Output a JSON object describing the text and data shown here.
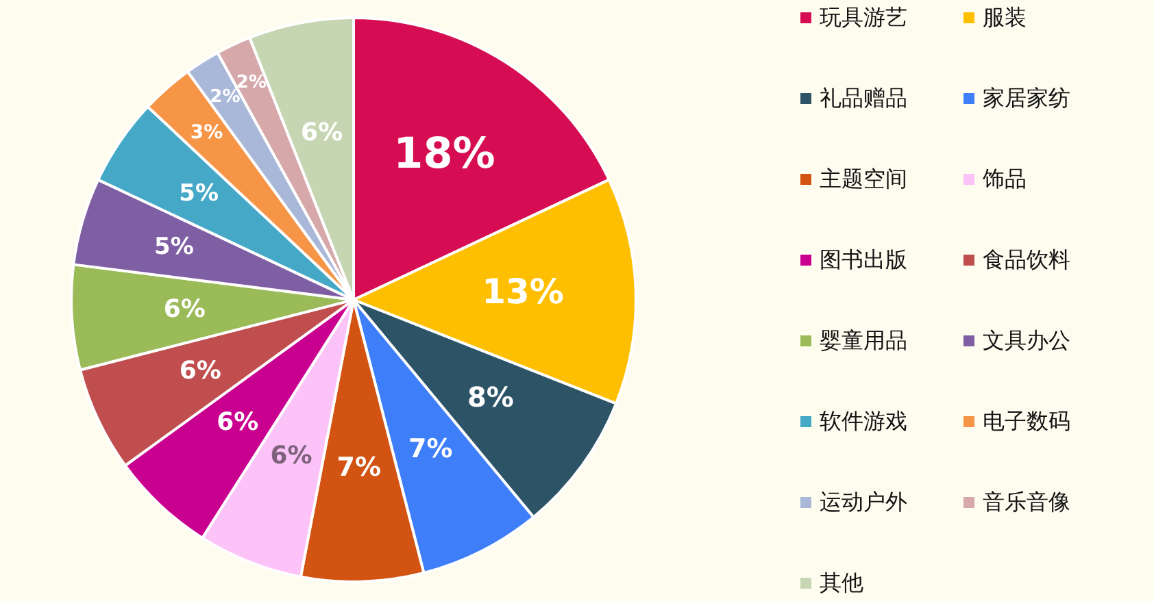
{
  "chart_data": {
    "type": "pie",
    "categories": [
      "玩具游艺",
      "服装",
      "礼品赠品",
      "家居家纺",
      "主题空间",
      "饰品",
      "图书出版",
      "食品饮料",
      "婴童用品",
      "文具办公",
      "软件游戏",
      "电子数码",
      "运动户外",
      "音乐音像",
      "其他"
    ],
    "values": [
      18,
      13,
      8,
      7,
      7,
      6,
      6,
      6,
      6,
      5,
      5,
      3,
      2,
      2,
      6
    ],
    "value_labels": [
      "18%",
      "13%",
      "8%",
      "7%",
      "7%",
      "6%",
      "6%",
      "6%",
      "6%",
      "5%",
      "5%",
      "3%",
      "2%",
      "2%",
      "6%"
    ],
    "colors": [
      "#d60d52",
      "#fdbf00",
      "#2d5367",
      "#3e7ef8",
      "#d35412",
      "#fbc3f8",
      "#c9008f",
      "#c04e4e",
      "#9bbb59",
      "#7f5fa3",
      "#44a8c6",
      "#f79546",
      "#a9b8d8",
      "#d7a8aa",
      "#c6d6b2"
    ],
    "legend": "right"
  }
}
